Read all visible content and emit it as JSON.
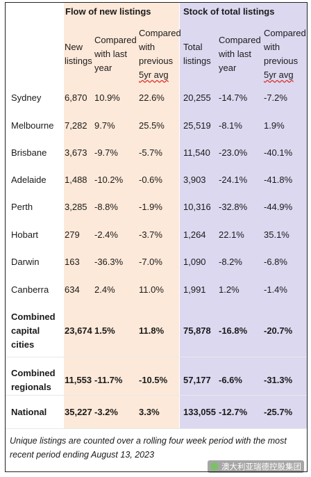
{
  "groups": {
    "flow": "Flow of new listings",
    "stock": "Stock of total listings"
  },
  "col_headers": {
    "new_listings": [
      "New",
      "listings"
    ],
    "new_vs_last": [
      "Compared",
      "with last",
      "year"
    ],
    "new_vs_5yr": [
      "Compared",
      "with",
      "previous",
      "5yr avg"
    ],
    "total_listings": [
      "Total",
      "listings"
    ],
    "total_vs_last": [
      "Compared",
      "with last",
      "year"
    ],
    "total_vs_5yr": [
      "Compared",
      "with",
      "previous",
      "5yr avg"
    ]
  },
  "rows": [
    {
      "name": "Sydney",
      "new": "6,870",
      "new_yoy": "10.9%",
      "new_5yr": "22.6%",
      "total": "20,255",
      "total_yoy": "-14.7%",
      "total_5yr": "-7.2%",
      "bold": false
    },
    {
      "name": "Melbourne",
      "new": "7,282",
      "new_yoy": "9.7%",
      "new_5yr": "25.5%",
      "total": "25,519",
      "total_yoy": "-8.1%",
      "total_5yr": "1.9%",
      "bold": false
    },
    {
      "name": "Brisbane",
      "new": "3,673",
      "new_yoy": "-9.7%",
      "new_5yr": "-5.7%",
      "total": "11,540",
      "total_yoy": "-23.0%",
      "total_5yr": "-40.1%",
      "bold": false
    },
    {
      "name": "Adelaide",
      "new": "1,488",
      "new_yoy": "-10.2%",
      "new_5yr": "-0.6%",
      "total": "3,903",
      "total_yoy": "-24.1%",
      "total_5yr": "-41.8%",
      "bold": false
    },
    {
      "name": "Perth",
      "new": "3,285",
      "new_yoy": "-8.8%",
      "new_5yr": "-1.9%",
      "total": "10,316",
      "total_yoy": "-32.8%",
      "total_5yr": "-44.9%",
      "bold": false
    },
    {
      "name": "Hobart",
      "new": "279",
      "new_yoy": "-2.4%",
      "new_5yr": "-3.7%",
      "total": "1,264",
      "total_yoy": "22.1%",
      "total_5yr": "35.1%",
      "bold": false
    },
    {
      "name": "Darwin",
      "new": "163",
      "new_yoy": "-36.3%",
      "new_5yr": "-7.0%",
      "total": "1,090",
      "total_yoy": "-8.2%",
      "total_5yr": "-6.8%",
      "bold": false
    },
    {
      "name": "Canberra",
      "new": "634",
      "new_yoy": "2.4%",
      "new_5yr": "11.0%",
      "total": "1,991",
      "total_yoy": "1.2%",
      "total_5yr": "-1.4%",
      "bold": false
    },
    {
      "name": "Combined capital cities",
      "name_lines": [
        "Combined",
        "capital",
        "cities"
      ],
      "new": "23,674",
      "new_yoy": "1.5%",
      "new_5yr": "11.8%",
      "total": "75,878",
      "total_yoy": "-16.8%",
      "total_5yr": "-20.7%",
      "bold": true
    },
    {
      "name": "Combined regionals",
      "name_lines": [
        "Combined",
        "regionals"
      ],
      "new": "11,553",
      "new_yoy": "-11.7%",
      "new_5yr": "-10.5%",
      "total": "57,177",
      "total_yoy": "-6.6%",
      "total_5yr": "-31.3%",
      "bold": true
    },
    {
      "name": "National",
      "new": "35,227",
      "new_yoy": "-3.2%",
      "new_5yr": "3.3%",
      "total": "133,055",
      "total_yoy": "-12.7%",
      "total_5yr": "-25.7%",
      "bold": true
    }
  ],
  "note": "Unique listings are counted over a rolling four week period with the most recent period ending August 13, 2023",
  "watermark": "澳大利亚瑞德控股集团",
  "colors": {
    "flow_band": "#fde9d9",
    "stock_band": "#dcd8f0"
  }
}
